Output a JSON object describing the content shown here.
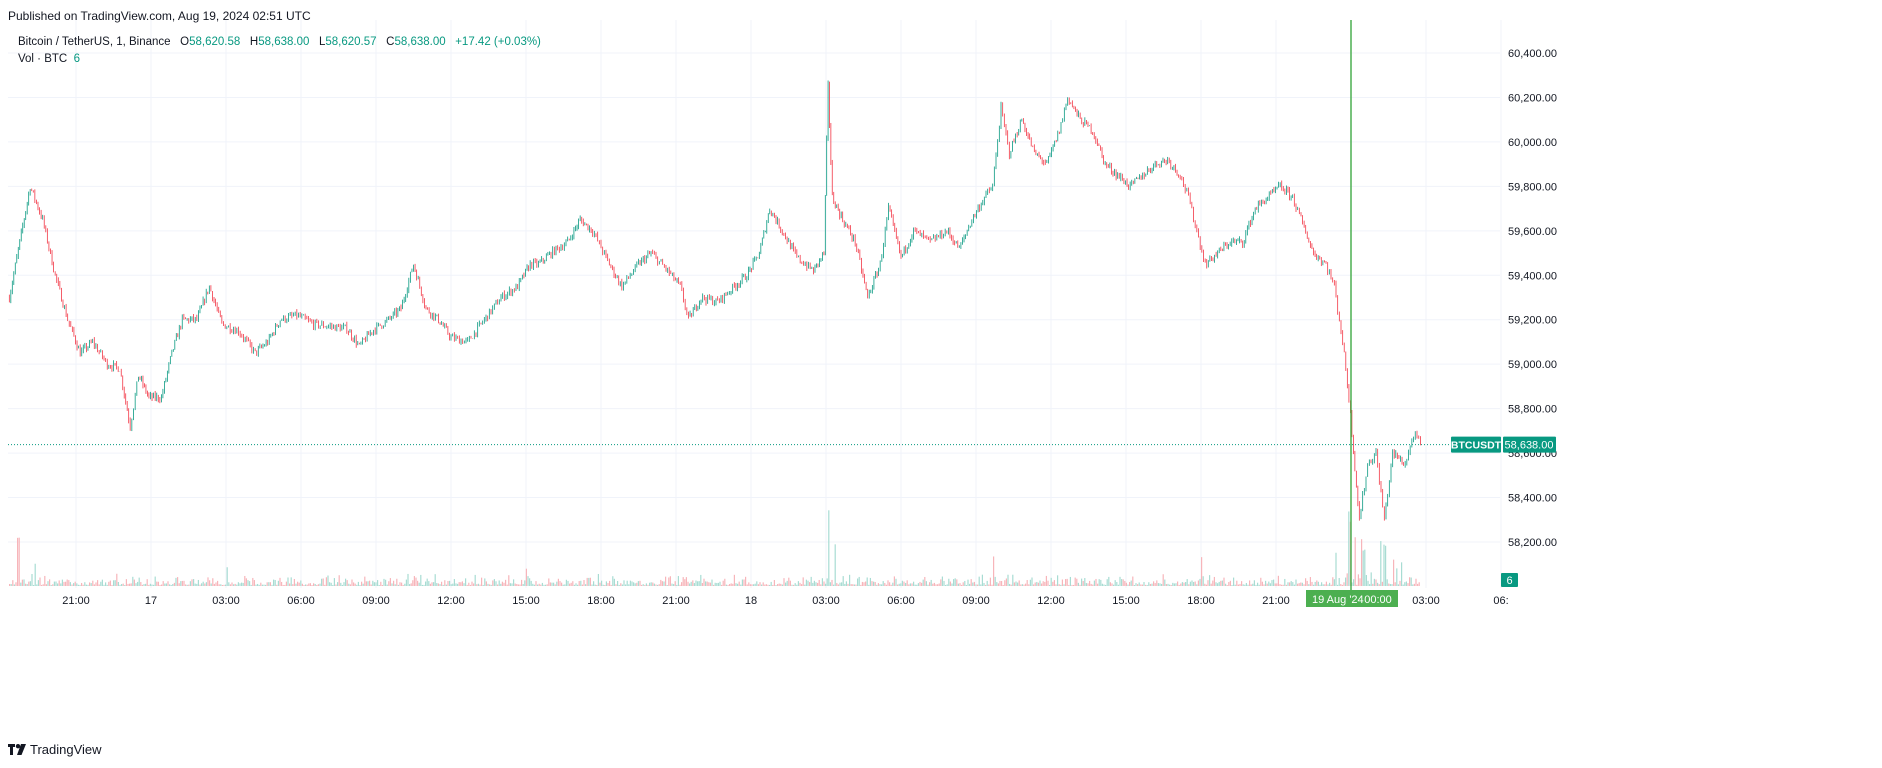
{
  "header": {
    "published": "Published on TradingView.com, Aug 19, 2024 02:51 UTC"
  },
  "legend": {
    "symbol": "Bitcoin / TetherUS, 1, Binance",
    "open_label": "O",
    "open": "58,620.58",
    "high_label": "H",
    "high": "58,638.00",
    "low_label": "L",
    "low": "58,620.57",
    "close_label": "C",
    "close": "58,638.00",
    "change": "+17.42 (+0.03%)",
    "vol_label": "Vol · BTC",
    "vol_value": "6"
  },
  "footer": {
    "brand": "TradingView"
  },
  "colors": {
    "up": "#089981",
    "down": "#f23645",
    "grid": "#f0f3fa",
    "crosshair": "#4caf50",
    "text": "#131722"
  },
  "chart_data": {
    "type": "candlestick",
    "symbol_tag": "BTCUSDT",
    "last_price": 58638.0,
    "last_price_label": "58,638.00",
    "volume_tag": "6",
    "ylim": [
      58050,
      60540
    ],
    "y_ticks": [
      58200,
      58400,
      58600,
      58800,
      59000,
      59200,
      59400,
      59600,
      59800,
      60000,
      60200,
      60400
    ],
    "y_tick_labels": [
      "58,200.00",
      "58,400.00",
      "58,600.00",
      "58,800.00",
      "59,000.00",
      "59,200.00",
      "59,400.00",
      "59,600.00",
      "59,800.00",
      "60,000.00",
      "60,200.00",
      "60,400.00"
    ],
    "x_ticks": [
      "21:00",
      "17",
      "03:00",
      "06:00",
      "09:00",
      "12:00",
      "15:00",
      "18:00",
      "21:00",
      "18",
      "03:00",
      "06:00",
      "09:00",
      "12:00",
      "15:00",
      "18:00",
      "21:00",
      "00:00",
      "03:00",
      "06:"
    ],
    "crosshair_label": "19 Aug '24",
    "price_path": [
      [
        "16 Aug 18:20",
        59300
      ],
      [
        "16 Aug 18:45",
        59550
      ],
      [
        "16 Aug 19:10",
        59800
      ],
      [
        "16 Aug 19:40",
        59650
      ],
      [
        "16 Aug 20:10",
        59400
      ],
      [
        "16 Aug 20:40",
        59200
      ],
      [
        "16 Aug 21:10",
        59050
      ],
      [
        "16 Aug 21:40",
        59100
      ],
      [
        "16 Aug 22:15",
        59000
      ],
      [
        "16 Aug 22:45",
        58980
      ],
      [
        "16 Aug 23:10",
        58720
      ],
      [
        "16 Aug 23:30",
        58950
      ],
      [
        "16 Aug 23:55",
        58850
      ],
      [
        "17 Aug 00:25",
        58850
      ],
      [
        "17 Aug 00:50",
        59050
      ],
      [
        "17 Aug 01:15",
        59200
      ],
      [
        "17 Aug 01:50",
        59200
      ],
      [
        "17 Aug 02:20",
        59350
      ],
      [
        "17 Aug 02:50",
        59180
      ],
      [
        "17 Aug 03:30",
        59150
      ],
      [
        "17 Aug 04:10",
        59050
      ],
      [
        "17 Aug 04:40",
        59100
      ],
      [
        "17 Aug 05:10",
        59200
      ],
      [
        "17 Aug 05:50",
        59220
      ],
      [
        "17 Aug 06:30",
        59180
      ],
      [
        "17 Aug 07:10",
        59170
      ],
      [
        "17 Aug 07:50",
        59160
      ],
      [
        "17 Aug 08:20",
        59080
      ],
      [
        "17 Aug 08:50",
        59150
      ],
      [
        "17 Aug 09:30",
        59200
      ],
      [
        "17 Aug 10:00",
        59250
      ],
      [
        "17 Aug 10:30",
        59450
      ],
      [
        "17 Aug 11:00",
        59250
      ],
      [
        "17 Aug 11:30",
        59200
      ],
      [
        "17 Aug 12:00",
        59120
      ],
      [
        "17 Aug 12:40",
        59100
      ],
      [
        "17 Aug 13:20",
        59200
      ],
      [
        "17 Aug 14:00",
        59300
      ],
      [
        "17 Aug 14:40",
        59350
      ],
      [
        "17 Aug 15:10",
        59450
      ],
      [
        "17 Aug 15:30",
        59450
      ],
      [
        "17 Aug 16:00",
        59500
      ],
      [
        "17 Aug 16:40",
        59550
      ],
      [
        "17 Aug 17:10",
        59650
      ],
      [
        "17 Aug 17:40",
        59600
      ],
      [
        "17 Aug 18:20",
        59450
      ],
      [
        "17 Aug 18:50",
        59350
      ],
      [
        "17 Aug 19:30",
        59450
      ],
      [
        "17 Aug 20:00",
        59500
      ],
      [
        "17 Aug 20:40",
        59420
      ],
      [
        "17 Aug 21:10",
        59350
      ],
      [
        "17 Aug 21:30",
        59200
      ],
      [
        "17 Aug 22:00",
        59300
      ],
      [
        "17 Aug 22:40",
        59280
      ],
      [
        "17 Aug 23:20",
        59350
      ],
      [
        "17 Aug 23:50",
        59400
      ],
      [
        "18 Aug 00:20",
        59500
      ],
      [
        "18 Aug 00:45",
        59700
      ],
      [
        "18 Aug 01:15",
        59600
      ],
      [
        "18 Aug 01:50",
        59480
      ],
      [
        "18 Aug 02:30",
        59420
      ],
      [
        "18 Aug 02:55",
        59500
      ],
      [
        "18 Aug 03:05",
        60250
      ],
      [
        "18 Aug 03:15",
        59750
      ],
      [
        "18 Aug 03:40",
        59650
      ],
      [
        "18 Aug 04:10",
        59550
      ],
      [
        "18 Aug 04:40",
        59300
      ],
      [
        "18 Aug 05:10",
        59450
      ],
      [
        "18 Aug 05:30",
        59700
      ],
      [
        "18 Aug 06:00",
        59480
      ],
      [
        "18 Aug 06:30",
        59600
      ],
      [
        "18 Aug 07:10",
        59550
      ],
      [
        "18 Aug 07:50",
        59600
      ],
      [
        "18 Aug 08:20",
        59520
      ],
      [
        "18 Aug 08:50",
        59650
      ],
      [
        "18 Aug 09:20",
        59750
      ],
      [
        "18 Aug 09:40",
        59800
      ],
      [
        "18 Aug 10:00",
        60150
      ],
      [
        "18 Aug 10:20",
        59950
      ],
      [
        "18 Aug 10:50",
        60100
      ],
      [
        "18 Aug 11:20",
        59950
      ],
      [
        "18 Aug 11:50",
        59900
      ],
      [
        "18 Aug 12:20",
        60050
      ],
      [
        "18 Aug 12:40",
        60200
      ],
      [
        "18 Aug 13:10",
        60100
      ],
      [
        "18 Aug 13:40",
        60050
      ],
      [
        "18 Aug 14:10",
        59900
      ],
      [
        "18 Aug 14:40",
        59850
      ],
      [
        "18 Aug 15:10",
        59800
      ],
      [
        "18 Aug 15:40",
        59850
      ],
      [
        "18 Aug 16:10",
        59900
      ],
      [
        "18 Aug 16:40",
        59920
      ],
      [
        "18 Aug 17:10",
        59850
      ],
      [
        "18 Aug 17:30",
        59750
      ],
      [
        "18 Aug 17:50",
        59600
      ],
      [
        "18 Aug 18:10",
        59450
      ],
      [
        "18 Aug 18:40",
        59500
      ],
      [
        "18 Aug 19:10",
        59550
      ],
      [
        "18 Aug 19:40",
        59550
      ],
      [
        "18 Aug 20:10",
        59700
      ],
      [
        "18 Aug 20:40",
        59750
      ],
      [
        "18 Aug 21:10",
        59800
      ],
      [
        "18 Aug 21:40",
        59750
      ],
      [
        "18 Aug 22:00",
        59650
      ],
      [
        "18 Aug 22:30",
        59500
      ],
      [
        "18 Aug 23:00",
        59450
      ],
      [
        "18 Aug 23:20",
        59350
      ],
      [
        "18 Aug 23:40",
        59100
      ],
      [
        "18 Aug 23:55",
        58850
      ],
      [
        "19 Aug 00:20",
        58300
      ],
      [
        "19 Aug 00:40",
        58550
      ],
      [
        "19 Aug 01:00",
        58600
      ],
      [
        "19 Aug 01:20",
        58300
      ],
      [
        "19 Aug 01:40",
        58600
      ],
      [
        "19 Aug 02:10",
        58550
      ],
      [
        "19 Aug 02:30",
        58680
      ],
      [
        "19 Aug 02:51",
        58638
      ]
    ],
    "volume_spikes": [
      [
        "16 Aug 18:40",
        48
      ],
      [
        "16 Aug 19:20",
        22
      ],
      [
        "17 Aug 03:00",
        18
      ],
      [
        "17 Aug 15:00",
        14
      ],
      [
        "18 Aug 03:05",
        72
      ],
      [
        "18 Aug 03:20",
        38
      ],
      [
        "18 Aug 09:40",
        28
      ],
      [
        "18 Aug 18:00",
        26
      ],
      [
        "18 Aug 23:55",
        36
      ],
      [
        "19 Aug 00:10",
        46
      ],
      [
        "19 Aug 00:30",
        34
      ],
      [
        "19 Aug 01:20",
        38
      ],
      [
        "19 Aug 02:00",
        22
      ]
    ]
  }
}
